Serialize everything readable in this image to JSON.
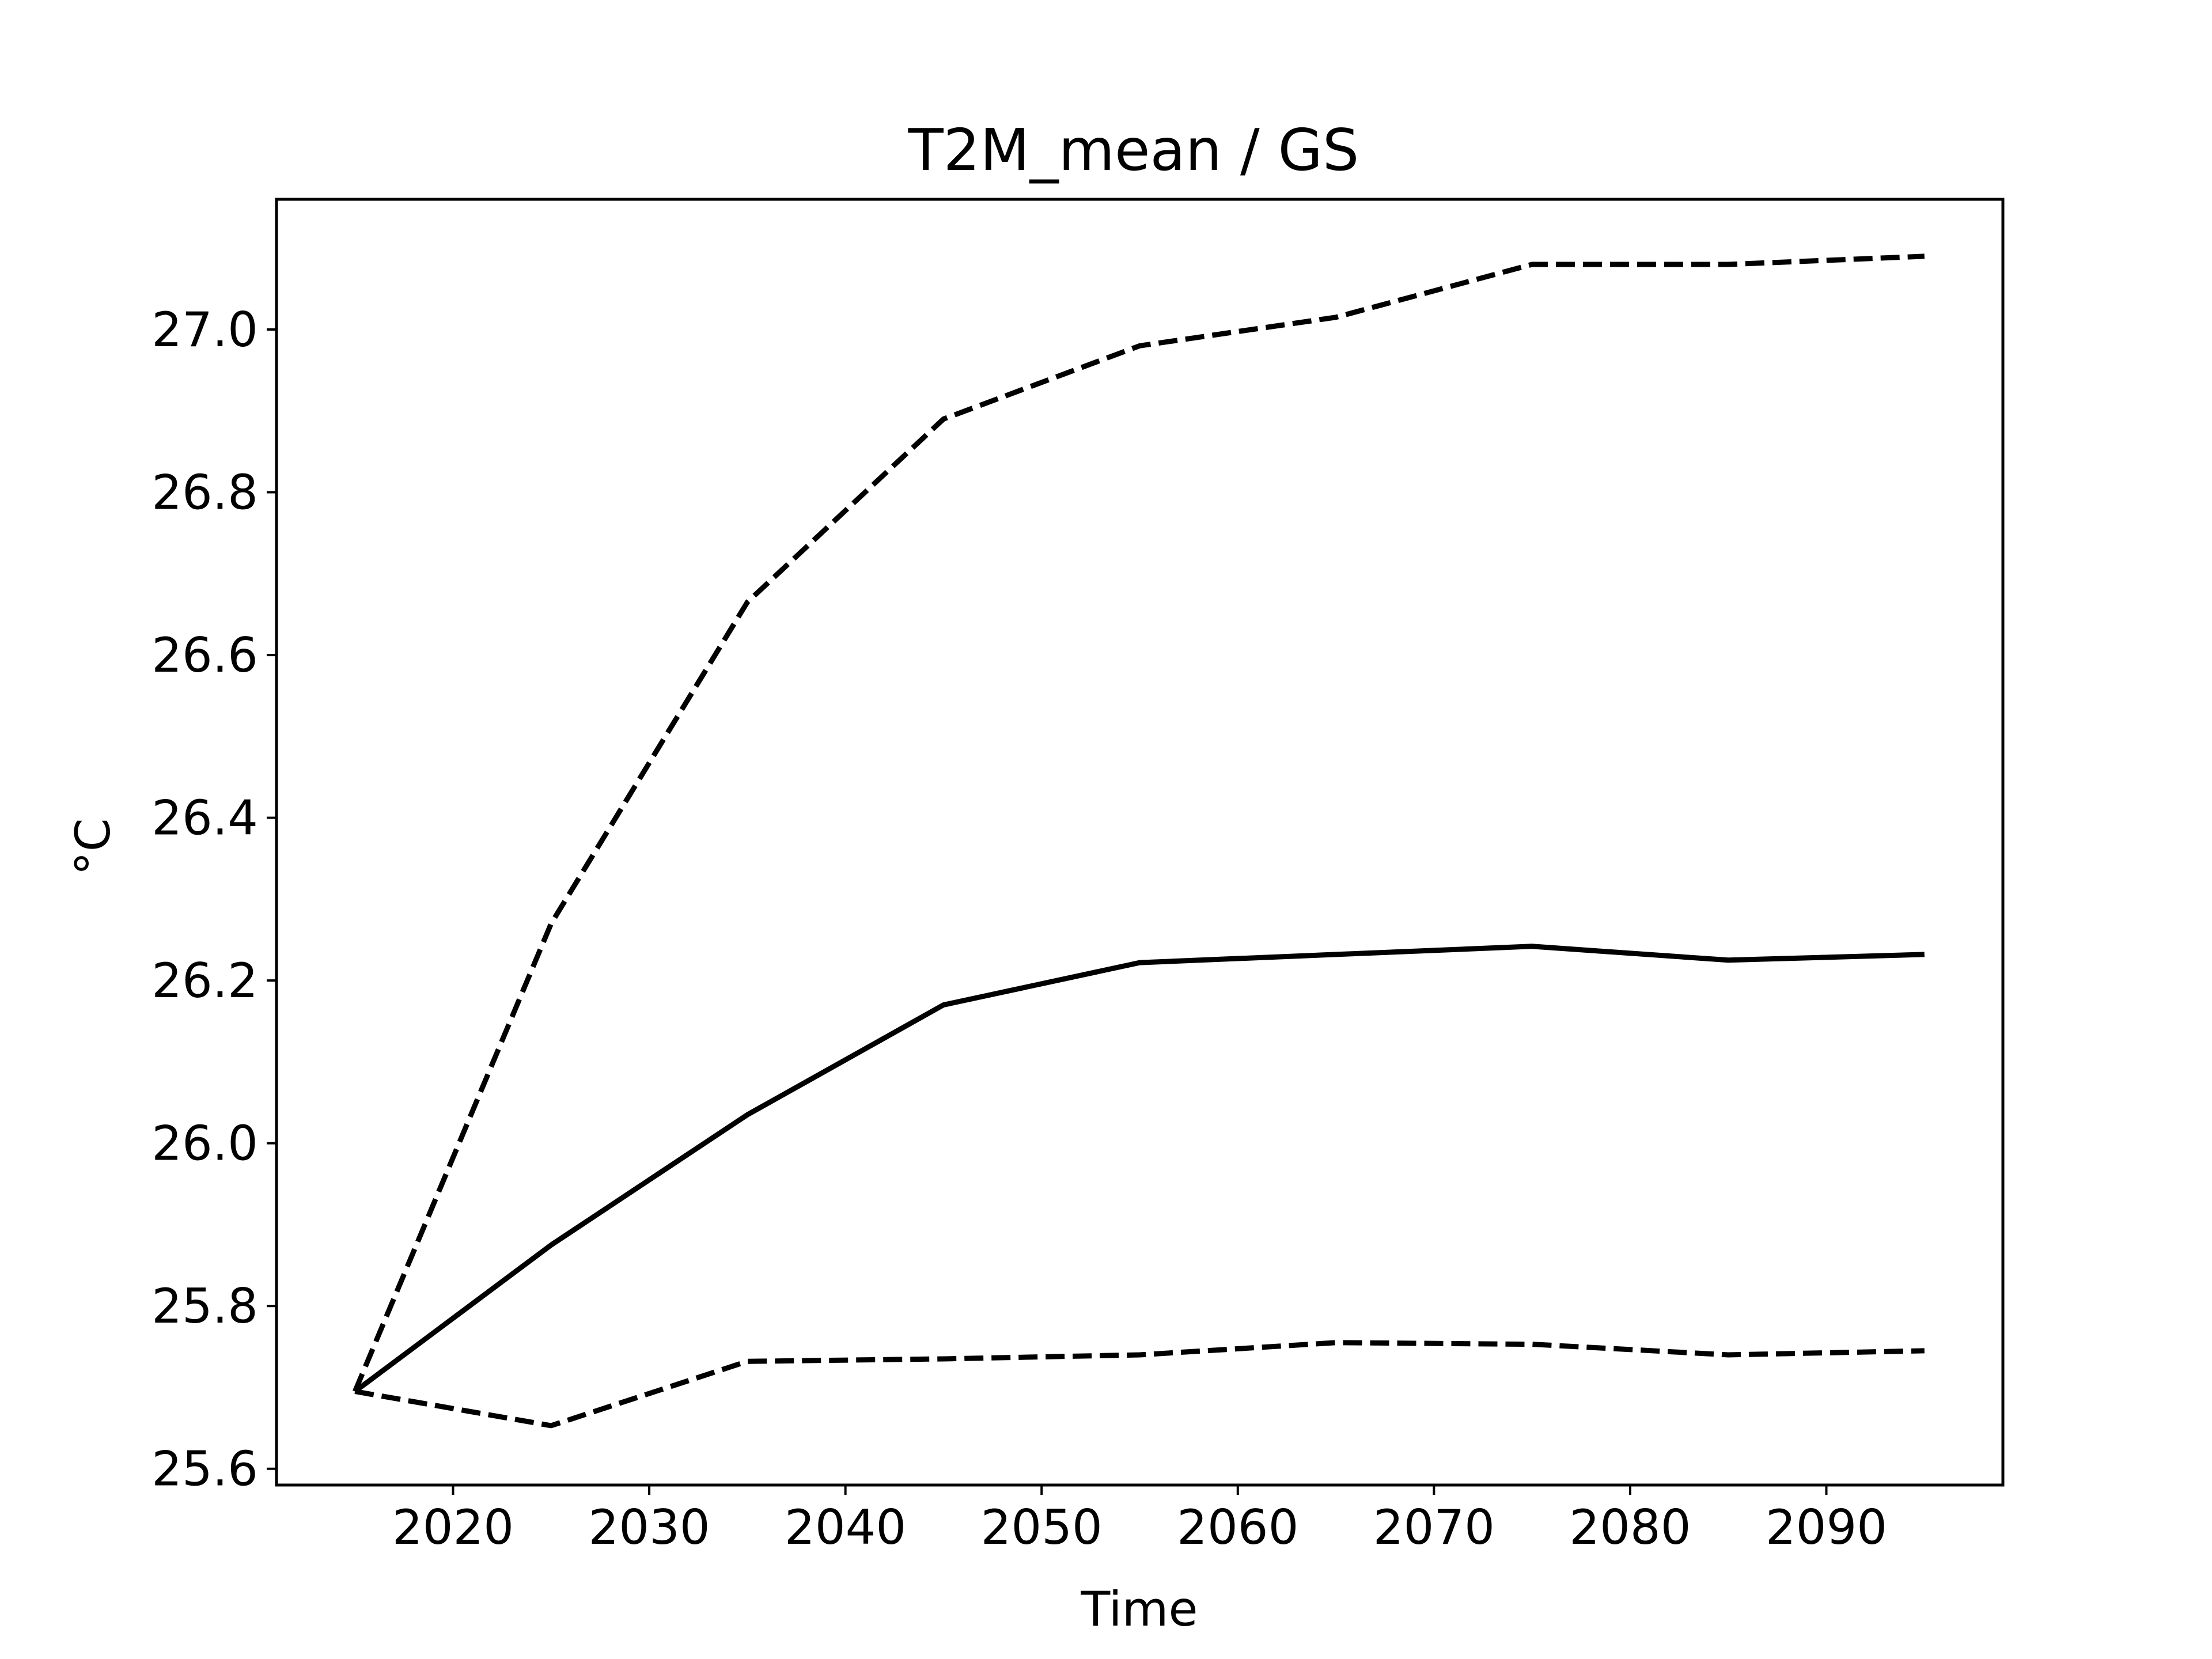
{
  "chart_data": {
    "type": "line",
    "title": "T2M_mean / GS",
    "xlabel": "Time",
    "ylabel": "°C",
    "x": [
      2015,
      2025,
      2035,
      2045,
      2055,
      2065,
      2075,
      2085,
      2095
    ],
    "xlim": [
      2011,
      2099
    ],
    "ylim": [
      25.58,
      27.16
    ],
    "xticks": [
      2020,
      2030,
      2040,
      2050,
      2060,
      2070,
      2080,
      2090
    ],
    "xtick_labels": [
      "2020",
      "2030",
      "2040",
      "2050",
      "2060",
      "2070",
      "2080",
      "2090"
    ],
    "yticks": [
      25.6,
      25.8,
      26.0,
      26.2,
      26.4,
      26.6,
      26.8,
      27.0
    ],
    "ytick_labels": [
      "25.6",
      "25.8",
      "26.0",
      "26.2",
      "26.4",
      "26.6",
      "26.8",
      "27.0"
    ],
    "grid": false,
    "series": [
      {
        "style": "dashed",
        "color": "#000000",
        "values": [
          25.695,
          26.27,
          26.665,
          26.89,
          26.98,
          27.015,
          27.08,
          27.08,
          27.09
        ]
      },
      {
        "style": "solid",
        "color": "#000000",
        "values": [
          25.695,
          25.875,
          26.035,
          26.17,
          26.222,
          26.232,
          26.242,
          26.225,
          26.232
        ]
      },
      {
        "style": "dashed",
        "color": "#000000",
        "values": [
          25.695,
          25.653,
          25.732,
          25.735,
          25.74,
          25.755,
          25.753,
          25.74,
          25.745
        ]
      }
    ]
  }
}
